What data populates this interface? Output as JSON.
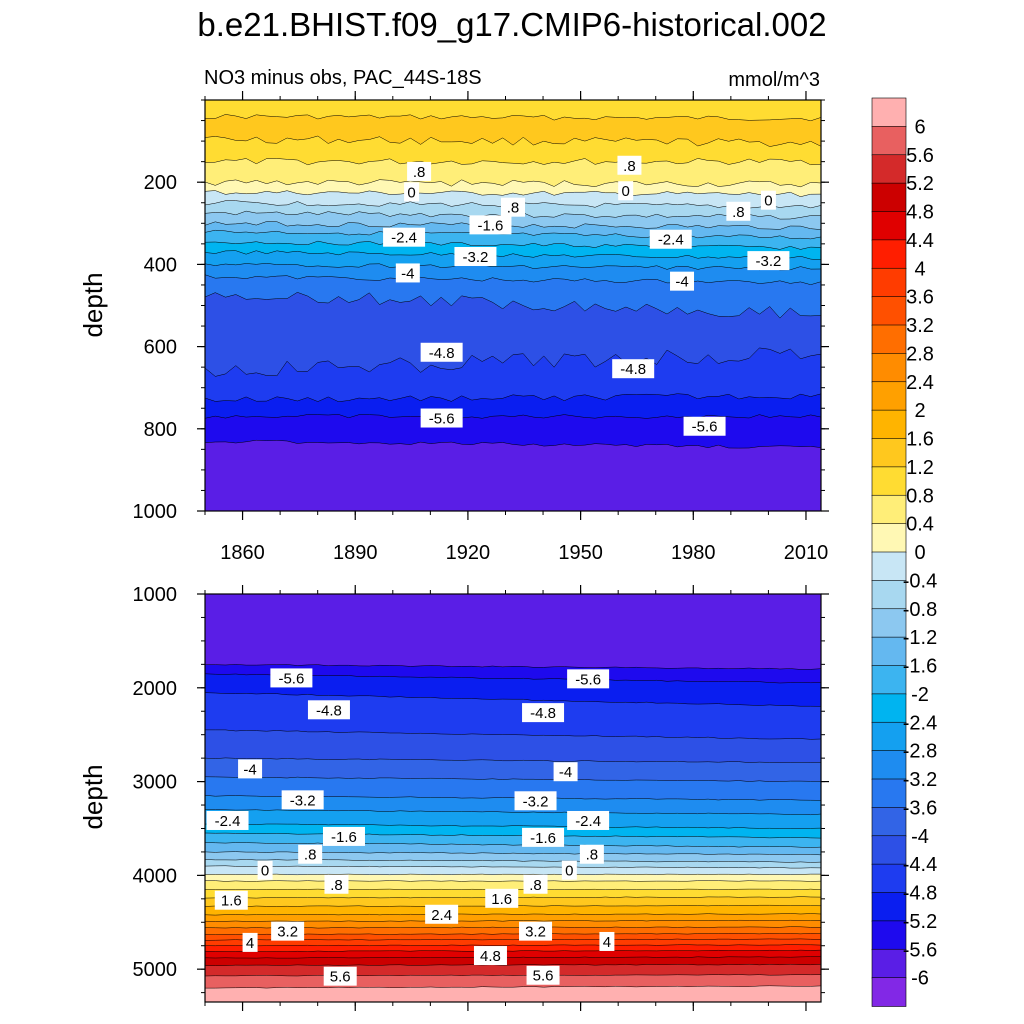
{
  "title": "b.e21.BHIST.f09_g17.CMIP6-historical.002",
  "subtitle_left": "NO3 minus obs, PAC_44S-18S",
  "subtitle_right": "mmol/m^3",
  "colorbar": {
    "levels": [
      "6",
      "5.6",
      "5.2",
      "4.8",
      "4.4",
      "4",
      "3.6",
      "3.2",
      "2.8",
      "2.4",
      "2",
      "1.6",
      "1.2",
      "0.8",
      "0.4",
      "0",
      "-0.4",
      "-0.8",
      "-1.2",
      "-1.6",
      "-2",
      "-2.4",
      "-2.8",
      "-3.2",
      "-3.6",
      "-4",
      "-4.4",
      "-4.8",
      "-5.2",
      "-5.6",
      "-6"
    ],
    "colors": [
      "#ffb0b0",
      "#e86060",
      "#d42a2a",
      "#cc0000",
      "#e00000",
      "#ff1e00",
      "#ff3c00",
      "#ff5000",
      "#ff6e00",
      "#ff8c00",
      "#ffa000",
      "#ffb400",
      "#ffc81e",
      "#ffdc32",
      "#ffee78",
      "#fff8b4",
      "#c8e6f5",
      "#a8d8f0",
      "#8cc8f0",
      "#64b8f0",
      "#3cb4f0",
      "#00b4f0",
      "#14a0f0",
      "#1e8cf0",
      "#2878f0",
      "#3264e6",
      "#2d50e6",
      "#1e3cf0",
      "#0a1ef0",
      "#1e0aee",
      "#5a1ee6",
      "#8228e6"
    ]
  },
  "chart_data": [
    {
      "type": "heatmap",
      "panel": "upper",
      "ylabel": "depth",
      "xlabel": "",
      "xlim": [
        1850,
        2014
      ],
      "ylim": [
        1000,
        0
      ],
      "xticks": [
        "1860",
        "1890",
        "1920",
        "1950",
        "1980",
        "2010"
      ],
      "yticks": [
        "200",
        "400",
        "600",
        "800",
        "1000"
      ],
      "contour_labels": [
        {
          "text": ".8",
          "x": 1907,
          "y": 175
        },
        {
          "text": ".8",
          "x": 1963,
          "y": 160
        },
        {
          "text": "0",
          "x": 1905,
          "y": 225
        },
        {
          "text": "0",
          "x": 1962,
          "y": 222
        },
        {
          "text": "0",
          "x": 2000,
          "y": 245
        },
        {
          "text": ".8",
          "x": 1932,
          "y": 262
        },
        {
          "text": ".8",
          "x": 1992,
          "y": 272
        },
        {
          "text": "-1.6",
          "x": 1926,
          "y": 305
        },
        {
          "text": "-2.4",
          "x": 1903,
          "y": 335
        },
        {
          "text": "-2.4",
          "x": 1974,
          "y": 340
        },
        {
          "text": "-3.2",
          "x": 1922,
          "y": 382
        },
        {
          "text": "-3.2",
          "x": 2000,
          "y": 392
        },
        {
          "text": "-4",
          "x": 1904,
          "y": 422
        },
        {
          "text": "-4",
          "x": 1977,
          "y": 442
        },
        {
          "text": "-4.8",
          "x": 1913,
          "y": 615
        },
        {
          "text": "-4.8",
          "x": 1964,
          "y": 655
        },
        {
          "text": "-5.6",
          "x": 1913,
          "y": 775
        },
        {
          "text": "-5.6",
          "x": 1983,
          "y": 795
        }
      ]
    },
    {
      "type": "heatmap",
      "panel": "lower",
      "ylabel": "depth",
      "xlabel": "",
      "xlim": [
        1850,
        2014
      ],
      "ylim": [
        5350,
        1000
      ],
      "xticks": [],
      "yticks": [
        "1000",
        "2000",
        "3000",
        "4000",
        "5000"
      ],
      "contour_labels": [
        {
          "text": "-5.6",
          "x": 1873,
          "y": 1900
        },
        {
          "text": "-5.6",
          "x": 1952,
          "y": 1910
        },
        {
          "text": "-4.8",
          "x": 1883,
          "y": 2240
        },
        {
          "text": "-4.8",
          "x": 1940,
          "y": 2270
        },
        {
          "text": "-4",
          "x": 1862,
          "y": 2870
        },
        {
          "text": "-4",
          "x": 1946,
          "y": 2900
        },
        {
          "text": "-3.2",
          "x": 1876,
          "y": 3200
        },
        {
          "text": "-3.2",
          "x": 1938,
          "y": 3210
        },
        {
          "text": "-2.4",
          "x": 1856,
          "y": 3420
        },
        {
          "text": "-2.4",
          "x": 1952,
          "y": 3420
        },
        {
          "text": "-1.6",
          "x": 1887,
          "y": 3590
        },
        {
          "text": "-1.6",
          "x": 1940,
          "y": 3600
        },
        {
          "text": ".8",
          "x": 1878,
          "y": 3780
        },
        {
          "text": ".8",
          "x": 1953,
          "y": 3780
        },
        {
          "text": "0",
          "x": 1866,
          "y": 3950
        },
        {
          "text": "0",
          "x": 1947,
          "y": 3950
        },
        {
          "text": ".8",
          "x": 1885,
          "y": 4100
        },
        {
          "text": ".8",
          "x": 1938,
          "y": 4100
        },
        {
          "text": "1.6",
          "x": 1857,
          "y": 4270
        },
        {
          "text": "1.6",
          "x": 1929,
          "y": 4250
        },
        {
          "text": "2.4",
          "x": 1913,
          "y": 4420
        },
        {
          "text": "3.2",
          "x": 1872,
          "y": 4600
        },
        {
          "text": "3.2",
          "x": 1938,
          "y": 4600
        },
        {
          "text": "4",
          "x": 1862,
          "y": 4720
        },
        {
          "text": "4",
          "x": 1957,
          "y": 4710
        },
        {
          "text": "4.8",
          "x": 1926,
          "y": 4860
        },
        {
          "text": "5.6",
          "x": 1886,
          "y": 5080
        },
        {
          "text": "5.6",
          "x": 1940,
          "y": 5070
        }
      ]
    }
  ]
}
